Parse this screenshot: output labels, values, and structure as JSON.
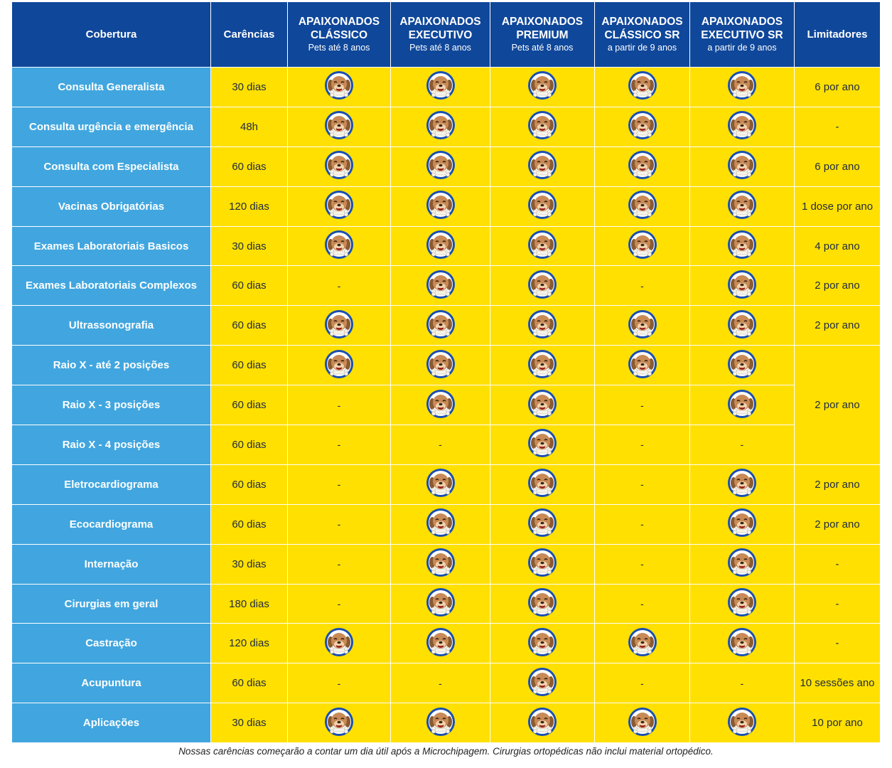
{
  "header": {
    "cobertura": "Cobertura",
    "carencias": "Carências",
    "limitadores": "Limitadores",
    "plans": [
      {
        "name_line1": "APAIXONADOS",
        "name_line2": "CLÁSSICO",
        "sub": "Pets até 8 anos"
      },
      {
        "name_line1": "APAIXONADOS",
        "name_line2": "EXECUTIVO",
        "sub": "Pets até 8 anos"
      },
      {
        "name_line1": "APAIXONADOS",
        "name_line2": "PREMIUM",
        "sub": "Pets até 8 anos"
      },
      {
        "name_line1": "APAIXONADOS",
        "name_line2": "CLÁSSICO SR",
        "sub": "a partir de 9 anos"
      },
      {
        "name_line1": "APAIXONADOS",
        "name_line2": "EXECUTIVO SR",
        "sub": "a partir de 9 anos"
      }
    ]
  },
  "included_icon": "dog-face-icon",
  "dash": "-",
  "rows": [
    {
      "cobertura": "Consulta Generalista",
      "carencia": "30 dias",
      "plans": [
        true,
        true,
        true,
        true,
        true
      ],
      "limitador": "6 por ano"
    },
    {
      "cobertura": "Consulta urgência e emergência",
      "carencia": "48h",
      "plans": [
        true,
        true,
        true,
        true,
        true
      ],
      "limitador": "-"
    },
    {
      "cobertura": "Consulta com Especialista",
      "carencia": "60 dias",
      "plans": [
        true,
        true,
        true,
        true,
        true
      ],
      "limitador": "6 por ano"
    },
    {
      "cobertura": "Vacinas Obrigatórias",
      "carencia": "120 dias",
      "plans": [
        true,
        true,
        true,
        true,
        true
      ],
      "limitador": "1 dose por ano"
    },
    {
      "cobertura": "Exames Laboratoriais Basicos",
      "carencia": "30 dias",
      "plans": [
        true,
        true,
        true,
        true,
        true
      ],
      "limitador": "4 por ano"
    },
    {
      "cobertura": "Exames Laboratoriais Complexos",
      "carencia": "60 dias",
      "plans": [
        false,
        true,
        true,
        false,
        true
      ],
      "limitador": "2 por ano"
    },
    {
      "cobertura": "Ultrassonografia",
      "carencia": "60 dias",
      "plans": [
        true,
        true,
        true,
        true,
        true
      ],
      "limitador": "2 por ano"
    },
    {
      "cobertura": "Raio X - até 2 posições",
      "carencia": "60 dias",
      "plans": [
        true,
        true,
        true,
        true,
        true
      ],
      "limitador": "2 por ano",
      "limitador_rowspan": 3
    },
    {
      "cobertura": "Raio X - 3 posições",
      "carencia": "60 dias",
      "plans": [
        false,
        true,
        true,
        false,
        true
      ]
    },
    {
      "cobertura": "Raio X - 4 posições",
      "carencia": "60 dias",
      "plans": [
        false,
        false,
        true,
        false,
        false
      ]
    },
    {
      "cobertura": "Eletrocardiograma",
      "carencia": "60 dias",
      "plans": [
        false,
        true,
        true,
        false,
        true
      ],
      "limitador": "2 por ano"
    },
    {
      "cobertura": "Ecocardiograma",
      "carencia": "60 dias",
      "plans": [
        false,
        true,
        true,
        false,
        true
      ],
      "limitador": "2 por ano"
    },
    {
      "cobertura": "Internação",
      "carencia": "30 dias",
      "plans": [
        false,
        true,
        true,
        false,
        true
      ],
      "limitador": "-"
    },
    {
      "cobertura": "Cirurgias em geral",
      "carencia": "180 dias",
      "plans": [
        false,
        true,
        true,
        false,
        true
      ],
      "limitador": "-"
    },
    {
      "cobertura": "Castração",
      "carencia": "120 dias",
      "plans": [
        true,
        true,
        true,
        true,
        true
      ],
      "limitador": "-"
    },
    {
      "cobertura": "Acupuntura",
      "carencia": "60 dias",
      "plans": [
        false,
        false,
        true,
        false,
        false
      ],
      "limitador": "10 sessões ano"
    },
    {
      "cobertura": "Aplicações",
      "carencia": "30 dias",
      "plans": [
        true,
        true,
        true,
        true,
        true
      ],
      "limitador": "10 por ano"
    }
  ],
  "footnote": "Nossas carências começarão a contar um dia útil após a Microchipagem. Cirurgias ortopédicas não inclui material ortopédico.",
  "colors": {
    "header_bg": "#0f479a",
    "coverage_bg": "#41a6df",
    "value_bg": "#ffe000",
    "icon_ring": "#1a4fb0",
    "icon_face": "#c88a56"
  }
}
